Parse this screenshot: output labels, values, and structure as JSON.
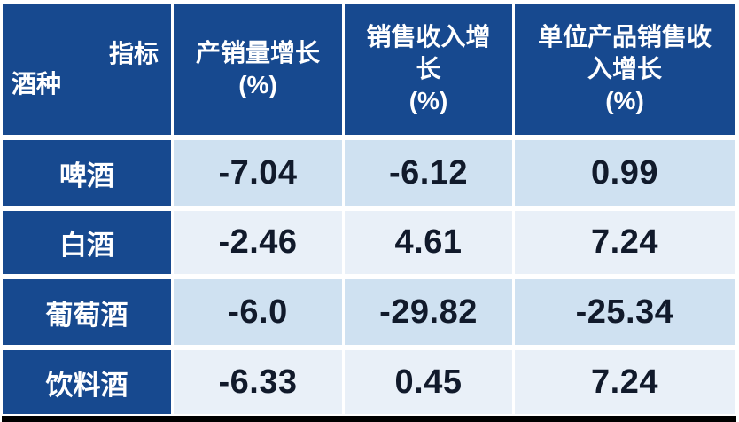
{
  "table": {
    "corner_top": "指标",
    "corner_bottom": "酒种",
    "columns": [
      "产销量增长\n(%)",
      "销售收入增\n长\n(%)",
      "单位产品销售收\n入增长\n(%)"
    ],
    "rows": [
      {
        "label": "啤酒",
        "values": [
          "-7.04",
          "-6.12",
          "0.99"
        ]
      },
      {
        "label": "白酒",
        "values": [
          "-2.46",
          "4.61",
          "7.24"
        ]
      },
      {
        "label": "葡萄酒",
        "values": [
          "-6.0",
          "-29.82",
          "-25.34"
        ]
      },
      {
        "label": "饮料酒",
        "values": [
          "-6.33",
          "0.45",
          "7.24"
        ]
      }
    ]
  },
  "chart_data": {
    "type": "table",
    "corner_header": {
      "top_right": "指标",
      "bottom_left": "酒种"
    },
    "columns": [
      "产销量增长 (%)",
      "销售收入增长 (%)",
      "单位产品销售收入增长 (%)"
    ],
    "row_labels": [
      "啤酒",
      "白酒",
      "葡萄酒",
      "饮料酒"
    ],
    "series": [
      {
        "name": "产销量增长 (%)",
        "values": [
          -7.04,
          -2.46,
          -6.0,
          -6.33
        ]
      },
      {
        "name": "销售收入增长 (%)",
        "values": [
          -6.12,
          4.61,
          -29.82,
          0.45
        ]
      },
      {
        "name": "单位产品销售收入增长 (%)",
        "values": [
          0.99,
          7.24,
          -25.34,
          7.24
        ]
      }
    ]
  },
  "colors": {
    "header_blue": "#17498F",
    "row_shade_dark": "#CFE1F1",
    "row_shade_light": "#E9F0F8",
    "value_text": "#111A2B",
    "bottom_bar": "#000000",
    "gap_white": "#FFFFFF"
  }
}
